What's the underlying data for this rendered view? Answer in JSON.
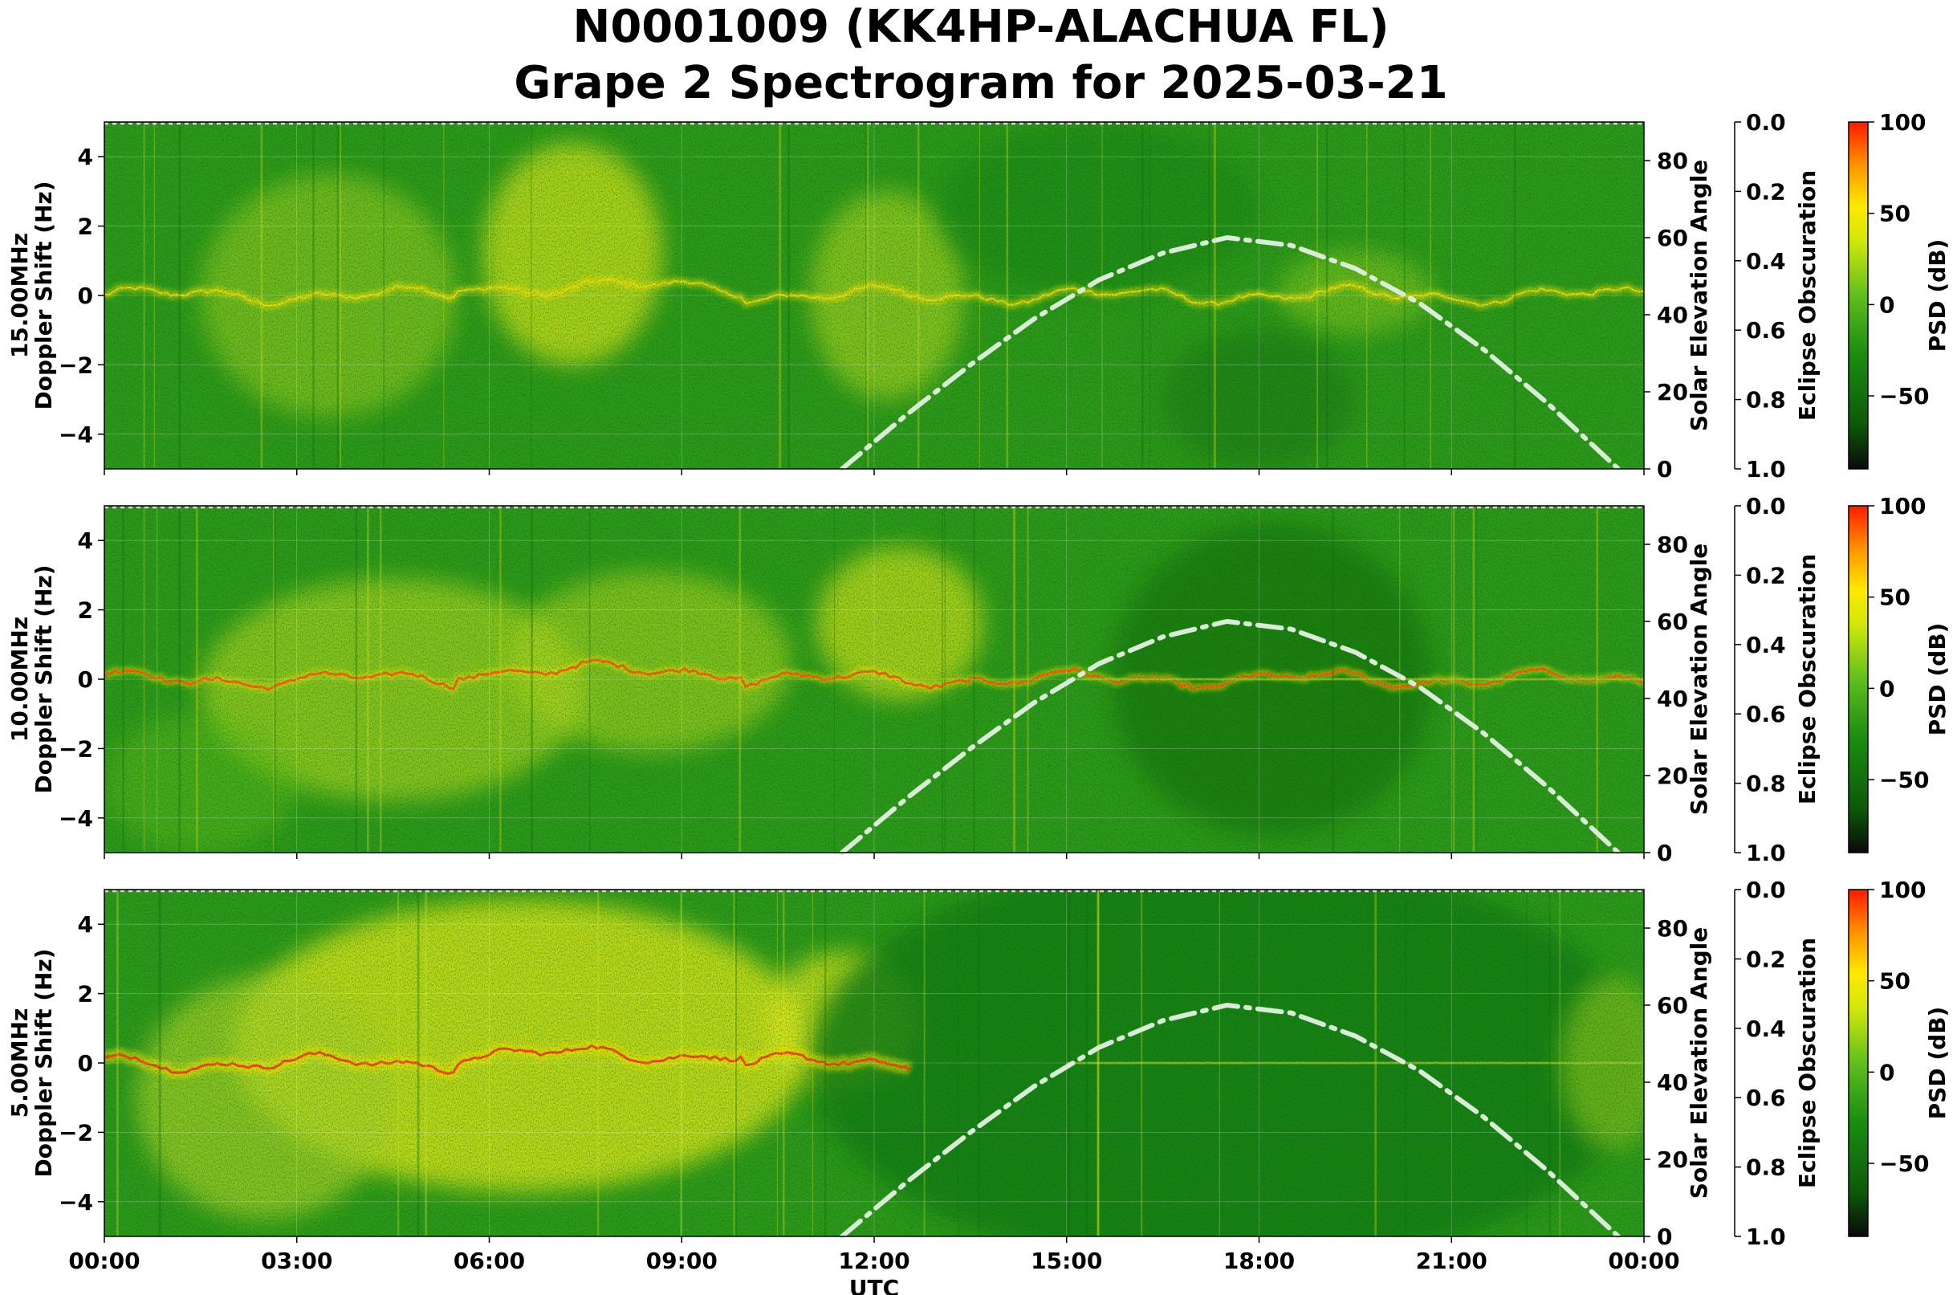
{
  "title_line1": "N0001009 (KK4HP-ALACHUA FL)",
  "title_line2": "Grape 2 Spectrogram for 2025-03-21",
  "chart_data": {
    "type": "heatmap",
    "x_ticks": [
      "00:00",
      "03:00",
      "06:00",
      "09:00",
      "12:00",
      "15:00",
      "18:00",
      "21:00",
      "00:00"
    ],
    "x_range_hours": [
      0,
      24
    ],
    "xlabel": "UTC",
    "y_range": [
      -5,
      5
    ],
    "y_ticks": [
      4,
      2,
      0,
      -2,
      -4
    ],
    "y_tick_labels": [
      "4",
      "2",
      "0",
      "−2",
      "−4"
    ],
    "right_axis": {
      "label": "Solar Elevation Angle",
      "range": [
        0,
        90
      ],
      "ticks": [
        "0",
        "20",
        "40",
        "60",
        "80"
      ]
    },
    "obscuration_axis": {
      "label": "Eclipse Obscuration",
      "range": [
        0.0,
        1.0
      ],
      "ticks": [
        "0.0",
        "0.2",
        "0.4",
        "0.6",
        "0.8",
        "1.0"
      ]
    },
    "colorbar": {
      "label": "PSD (dB)",
      "range": [
        -90,
        100
      ],
      "ticks": [
        "100",
        "50",
        "0",
        "−50"
      ],
      "tick_values": [
        100,
        50,
        0,
        -50
      ],
      "colors": [
        "#0a0a0a",
        "#0d5a0a",
        "#1c8f12",
        "#62be1c",
        "#d2e80c",
        "#ffe800",
        "#ff9000",
        "#ff1a00"
      ]
    },
    "solar_elevation_curve": {
      "style": "dash-dot",
      "color": "#d8ecd6",
      "hours": [
        11.5,
        12.5,
        13.5,
        14.5,
        15.5,
        16.5,
        17.5,
        18.5,
        19.5,
        20.5,
        21.5,
        22.5,
        23.6
      ],
      "elevation_deg": [
        0,
        14,
        27,
        39,
        49,
        56,
        60,
        58,
        52,
        43,
        31,
        17,
        0
      ]
    },
    "panels": [
      {
        "ylabel": "15.00MHz\nDoppler Shift (Hz)",
        "ylabel_line1": "15.00MHz",
        "ylabel_line2": "Doppler Shift (Hz)",
        "description": "Noisy green/yellow spectrogram; diffuse yellow Doppler traces near 0 Hz, strong spreading 06:00-08:00 and 11:00-13:00"
      },
      {
        "ylabel": "10.00MHz\nDoppler Shift (Hz)",
        "ylabel_line1": "10.00MHz",
        "ylabel_line2": "Doppler Shift (Hz)",
        "description": "Red/orange carrier trace near 0 Hz before 12:00, diffuse trace after 15:00"
      },
      {
        "ylabel": "5.00MHz\nDoppler Shift (Hz)",
        "ylabel_line1": "5.00MHz",
        "ylabel_line2": "Doppler Shift (Hz)",
        "description": "Strong red/orange trace near 0 Hz from 00:00 to 12:30, dark green daytime absorption afterwards"
      }
    ]
  }
}
